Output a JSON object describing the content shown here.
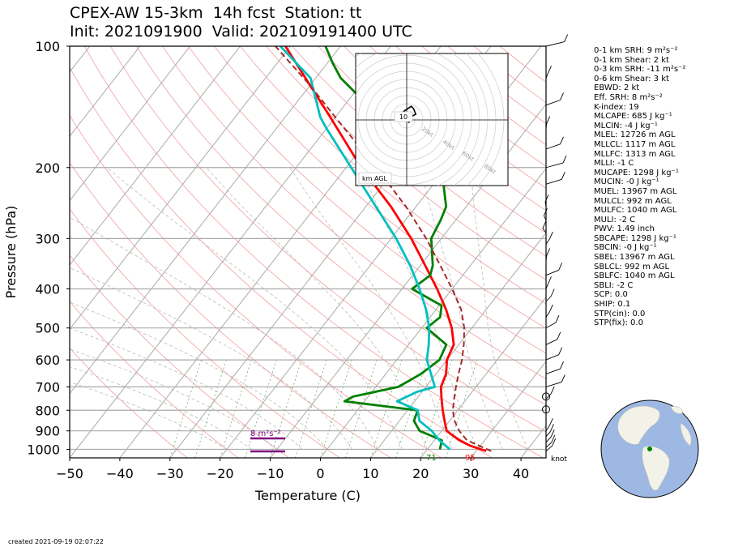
{
  "header": {
    "title_line1": "CPEX-AW 15-3km  14h fcst  Station: tt",
    "title_line2": "Init: 2021091900  Valid: 202109191400 UTC"
  },
  "chart_data": {
    "type": "line",
    "subtype": "skew-T log-p",
    "xlabel": "Temperature (C)",
    "ylabel": "Pressure (hPa)",
    "xlim": [
      -50,
      45
    ],
    "ylim": [
      1050,
      100
    ],
    "yscale": "log",
    "x_ticks": [
      "−50",
      "−40",
      "−30",
      "−20",
      "−10",
      "0",
      "10",
      "20",
      "30",
      "40"
    ],
    "y_ticks": [
      "100",
      "200",
      "300",
      "400",
      "500",
      "600",
      "700",
      "800",
      "900",
      "1000"
    ],
    "x_tick_values": [
      -50,
      -40,
      -30,
      -20,
      -10,
      0,
      10,
      20,
      30,
      40
    ],
    "y_tick_values": [
      100,
      200,
      300,
      400,
      500,
      600,
      700,
      800,
      900,
      1000
    ],
    "colors": {
      "temperature": "#ff0000",
      "dewpoint": "#008000",
      "wetbulb": "#00bfbf",
      "parcel": "#a52a2a"
    },
    "series": [
      {
        "color": "#ff0000",
        "points": [
          [
            1010,
            32
          ],
          [
            980,
            28
          ],
          [
            950,
            25
          ],
          [
            925,
            23
          ],
          [
            900,
            21
          ],
          [
            850,
            19
          ],
          [
            800,
            17
          ],
          [
            750,
            15
          ],
          [
            700,
            13
          ],
          [
            650,
            12
          ],
          [
            600,
            10
          ],
          [
            550,
            9
          ],
          [
            500,
            6
          ],
          [
            450,
            2
          ],
          [
            400,
            -3
          ],
          [
            350,
            -9
          ],
          [
            300,
            -16
          ],
          [
            250,
            -25
          ],
          [
            200,
            -37
          ],
          [
            150,
            -51
          ],
          [
            125,
            -60
          ],
          [
            100,
            -71
          ]
        ]
      },
      {
        "color": "#008000",
        "points": [
          [
            1000,
            22.5
          ],
          [
            950,
            21.5
          ],
          [
            925,
            18.6
          ],
          [
            900,
            15.6
          ],
          [
            850,
            12.9
          ],
          [
            800,
            12.0
          ],
          [
            760,
            -4.0
          ],
          [
            740,
            -3.0
          ],
          [
            700,
            4.5
          ],
          [
            650,
            7.0
          ],
          [
            600,
            8.5
          ],
          [
            550,
            7.5
          ],
          [
            500,
            1.0
          ],
          [
            470,
            2.0
          ],
          [
            440,
            0.5
          ],
          [
            400,
            -8.0
          ],
          [
            370,
            -6.5
          ],
          [
            350,
            -7.5
          ],
          [
            300,
            -12.0
          ],
          [
            270,
            -13.0
          ],
          [
            250,
            -14.0
          ],
          [
            220,
            -18.0
          ],
          [
            200,
            -22.0
          ],
          [
            180,
            -27.0
          ],
          [
            160,
            -35.0
          ],
          [
            150,
            -40.0
          ],
          [
            140,
            -46.0
          ],
          [
            130,
            -50.0
          ],
          [
            120,
            -55.0
          ],
          [
            110,
            -59.0
          ],
          [
            100,
            -63.0
          ]
        ]
      },
      {
        "color": "#00bfbf",
        "points": [
          [
            1000,
            24.5
          ],
          [
            950,
            21.0
          ],
          [
            900,
            18.0
          ],
          [
            850,
            14.0
          ],
          [
            800,
            12.0
          ],
          [
            760,
            6.5
          ],
          [
            720,
            9.0
          ],
          [
            700,
            11.8
          ],
          [
            650,
            9.0
          ],
          [
            600,
            6.0
          ],
          [
            550,
            4.0
          ],
          [
            500,
            1.5
          ],
          [
            450,
            -2.0
          ],
          [
            400,
            -6.5
          ],
          [
            350,
            -12.0
          ],
          [
            300,
            -19.0
          ],
          [
            250,
            -28.0
          ],
          [
            200,
            -39.0
          ],
          [
            160,
            -50.0
          ],
          [
            150,
            -53.0
          ],
          [
            120,
            -61.0
          ],
          [
            100,
            -72.0
          ]
        ]
      },
      {
        "color": "#a52a2a",
        "dash": true,
        "points": [
          [
            1010,
            33
          ],
          [
            950,
            26.5
          ],
          [
            900,
            23.5
          ],
          [
            850,
            21
          ],
          [
            800,
            19
          ],
          [
            750,
            17.5
          ],
          [
            700,
            16
          ],
          [
            650,
            14.5
          ],
          [
            600,
            13
          ],
          [
            550,
            11
          ],
          [
            500,
            8.5
          ],
          [
            450,
            5
          ],
          [
            400,
            0
          ],
          [
            350,
            -6
          ],
          [
            300,
            -13
          ],
          [
            250,
            -22
          ],
          [
            200,
            -34
          ],
          [
            150,
            -50
          ],
          [
            125,
            -60
          ],
          [
            100,
            -73
          ]
        ]
      }
    ],
    "hodograph": {
      "range_labels": [
        "20kt",
        "40kt",
        "60kt",
        "80kt"
      ],
      "level_label": "10",
      "unit_label": "km AGL",
      "points": [
        [
          0,
          0
        ],
        [
          -2,
          3
        ],
        [
          -4,
          6
        ],
        [
          -2,
          8
        ],
        [
          4,
          12
        ],
        [
          6,
          10
        ],
        [
          8,
          5
        ],
        [
          4,
          3
        ],
        [
          2,
          -2
        ],
        [
          0,
          0
        ]
      ]
    },
    "annotations": {
      "srh_label": "8 m²s⁻²",
      "bottom_dewpoint": "71",
      "bottom_temp": "95",
      "wind_unit": "knot"
    },
    "grid": true
  },
  "stats": [
    "0-1 km SRH: 9 m²s⁻²",
    "0-1 km Shear: 2 kt",
    "0-3 km SRH: -11 m²s⁻²",
    "0-6 km Shear: 3 kt",
    "EBWD: 2 kt",
    "Eff. SRH: 8 m²s⁻²",
    "K-index: 19",
    "MLCAPE: 685 J kg⁻¹",
    "MLCIN: -4 J kg⁻¹",
    "MLEL: 12726 m AGL",
    "MLLCL: 1117 m AGL",
    "MLLFC: 1313 m AGL",
    "MLLI: -1 C",
    "MUCAPE: 1298 J kg⁻¹",
    "MUCIN: -0 J kg⁻¹",
    "MUEL: 13967 m AGL",
    "MULCL: 992 m AGL",
    "MULFC: 1040 m AGL",
    "MULI: -2 C",
    "PWV: 1.49 inch",
    "SBCAPE: 1298 J kg⁻¹",
    "SBCIN: -0 J kg⁻¹",
    "SBEL: 13967 m AGL",
    "SBLCL: 992 m AGL",
    "SBLFC: 1040 m AGL",
    "SBLI: -2 C",
    "SCP: 0.0",
    "SHIP: 0.1",
    "STP(cin): 0.0",
    "STP(fix): 0.0"
  ],
  "footer": {
    "created": "created 2021-09-19 02:07:22"
  }
}
